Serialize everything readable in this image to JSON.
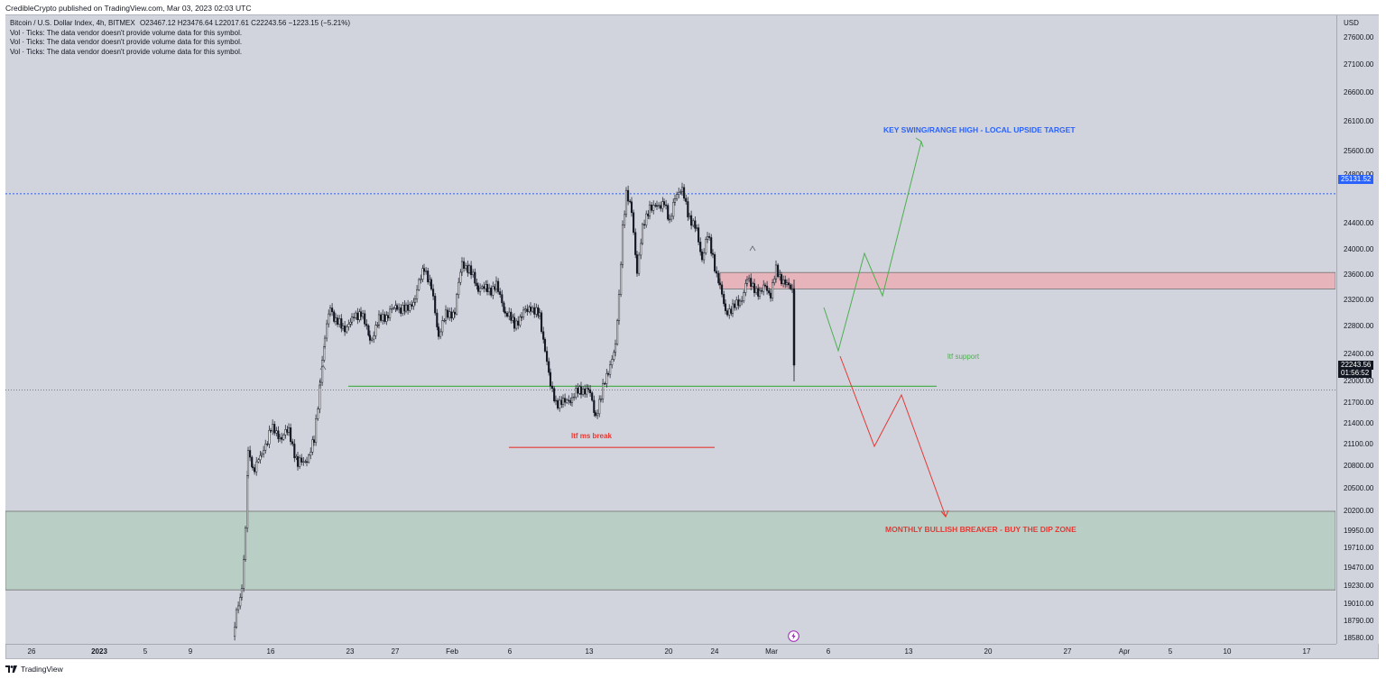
{
  "publisher_line": "CredibleCrypto published on TradingView.com, Mar 03, 2023 02:03 UTC",
  "legend": {
    "symbol": "Bitcoin / U.S. Dollar Index, 4h, BITMEX",
    "ohlc": "O23467.12  H23476.64  L22017.61  C22243.56  −1223.15 (−5.21%)",
    "volume_lines": [
      "Vol · Ticks: The data vendor doesn't provide volume data for this symbol.",
      "Vol · Ticks: The data vendor doesn't provide volume data for this symbol.",
      "Vol · Ticks: The data vendor doesn't provide volume data for this symbol."
    ]
  },
  "price_axis": {
    "currency": "USD",
    "ticks": [
      "27600.00",
      "27100.00",
      "26600.00",
      "26100.00",
      "25600.00",
      "24800.00",
      "24400.00",
      "24000.00",
      "23600.00",
      "23200.00",
      "22800.00",
      "22400.00",
      "22000.00",
      "21700.00",
      "21400.00",
      "21100.00",
      "20800.00",
      "20500.00",
      "20200.00",
      "19950.00",
      "19710.00",
      "19470.00",
      "19230.00",
      "19010.00",
      "18790.00",
      "18580.00"
    ],
    "dotted_level_label": "25131.52",
    "last_price_label": "22243.56",
    "countdown_label": "01:56:52"
  },
  "time_axis": {
    "ticks": [
      {
        "label": "26",
        "bold": false
      },
      {
        "label": "2023",
        "bold": true
      },
      {
        "label": "5",
        "bold": false
      },
      {
        "label": "9",
        "bold": false
      },
      {
        "label": "16",
        "bold": false
      },
      {
        "label": "23",
        "bold": false
      },
      {
        "label": "27",
        "bold": false
      },
      {
        "label": "Feb",
        "bold": false
      },
      {
        "label": "6",
        "bold": false
      },
      {
        "label": "13",
        "bold": false
      },
      {
        "label": "20",
        "bold": false
      },
      {
        "label": "24",
        "bold": false
      },
      {
        "label": "Mar",
        "bold": false
      },
      {
        "label": "6",
        "bold": false
      },
      {
        "label": "13",
        "bold": false
      },
      {
        "label": "20",
        "bold": false
      },
      {
        "label": "27",
        "bold": false
      },
      {
        "label": "Apr",
        "bold": false
      },
      {
        "label": "5",
        "bold": false
      },
      {
        "label": "10",
        "bold": false
      },
      {
        "label": "17",
        "bold": false
      }
    ]
  },
  "annotations": {
    "upside_target": "KEY SWING/RANGE HIGH - LOCAL UPSIDE TARGET",
    "ltf_support": "ltf support",
    "ltf_ms_break": "ltf ms break",
    "buy_zone": "MONTHLY BULLISH BREAKER - BUY THE DIP ZONE"
  },
  "levels": {
    "dotted_level": 25131.52,
    "last_price": 22243.56,
    "resistance_zone": [
      23780,
      24040
    ],
    "buy_zone": [
      19420,
      20500
    ],
    "ltf_support": 22310,
    "ltf_ms_break": 21360
  },
  "footer": {
    "brand": "TradingView"
  },
  "colors": {
    "background": "#d1d4dc",
    "resistance_zone": "#e8b4bc",
    "buy_zone": "#b9cec4",
    "upside_text": "#2962ff",
    "support_green": "#4caf50",
    "break_red": "#e53935",
    "dotted_level": "#2962ff",
    "last_price_badge": "#131722",
    "candle": "#131722"
  },
  "icons": {
    "flash": "lightning-bolt-icon",
    "logo": "tradingview-logo-icon"
  }
}
